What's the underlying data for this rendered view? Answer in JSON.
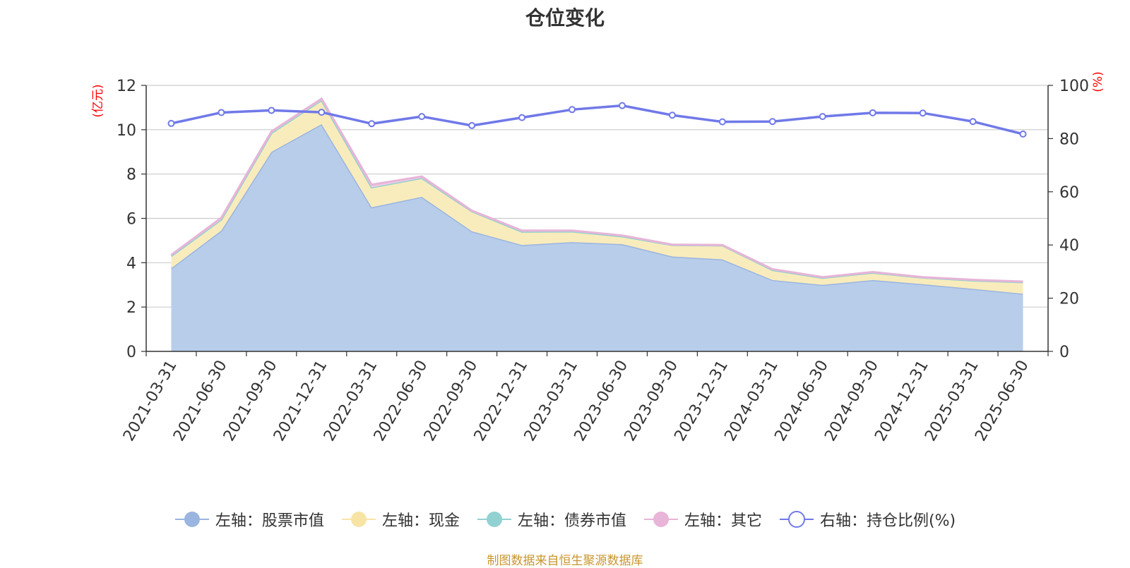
{
  "chart_data": {
    "type": "area",
    "title": "仓位变化",
    "categories": [
      "2021-03-31",
      "2021-06-30",
      "2021-09-30",
      "2021-12-31",
      "2022-03-31",
      "2022-06-30",
      "2022-09-30",
      "2022-12-31",
      "2023-03-31",
      "2023-06-30",
      "2023-09-30",
      "2023-12-31",
      "2024-03-31",
      "2024-06-30",
      "2024-09-30",
      "2024-12-31",
      "2025-03-31",
      "2025-06-30"
    ],
    "left_axis": {
      "unit_label": "(亿元)",
      "ylim": [
        0,
        12
      ],
      "ticks": [
        0,
        2,
        4,
        6,
        8,
        10,
        12
      ]
    },
    "right_axis": {
      "unit_label": "(%)",
      "ylim": [
        0,
        100
      ],
      "ticks": [
        0,
        20,
        40,
        60,
        80,
        100
      ]
    },
    "series": [
      {
        "name": "左轴：股票市值",
        "axis": "left",
        "kind": "stacked-area",
        "color": "#9ab5e0",
        "fill": "#b8cdea",
        "values": [
          3.75,
          5.45,
          9.0,
          10.25,
          6.5,
          6.97,
          5.42,
          4.8,
          4.93,
          4.84,
          4.28,
          4.15,
          3.22,
          3.0,
          3.22,
          3.03,
          2.82,
          2.6
        ]
      },
      {
        "name": "左轴：现金",
        "axis": "left",
        "kind": "stacked-area",
        "color": "#f7e4a5",
        "fill": "#f9ecbc",
        "values": [
          0.55,
          0.5,
          0.85,
          1.08,
          0.9,
          0.85,
          0.9,
          0.6,
          0.48,
          0.35,
          0.52,
          0.63,
          0.45,
          0.32,
          0.33,
          0.3,
          0.38,
          0.52
        ]
      },
      {
        "name": "左轴：债券市值",
        "axis": "left",
        "kind": "stacked-area",
        "color": "#92d1d1",
        "fill": "#b6e2e2",
        "values": [
          0,
          0,
          0,
          0,
          0,
          0,
          0,
          0,
          0,
          0,
          0,
          0,
          0,
          0,
          0,
          0,
          0,
          0
        ]
      },
      {
        "name": "左轴：其它",
        "axis": "left",
        "kind": "stacked-area",
        "color": "#e8b4d8",
        "fill": "#f0cde4",
        "values": [
          0.05,
          0.08,
          0.07,
          0.07,
          0.12,
          0.07,
          0.03,
          0.05,
          0.04,
          0.04,
          0.02,
          0.02,
          0.04,
          0.03,
          0.03,
          0.02,
          0.03,
          0.03
        ]
      },
      {
        "name": "右轴：持仓比例(%)",
        "axis": "right",
        "kind": "line",
        "color": "#7079e8",
        "values": [
          85.7,
          89.8,
          90.6,
          89.9,
          85.6,
          88.3,
          84.9,
          87.9,
          90.9,
          92.4,
          88.8,
          86.3,
          86.4,
          88.3,
          89.7,
          89.6,
          86.4,
          81.7
        ]
      }
    ],
    "grid": true,
    "legend_position": "bottom"
  },
  "source_note": "制图数据来自恒生聚源数据库"
}
